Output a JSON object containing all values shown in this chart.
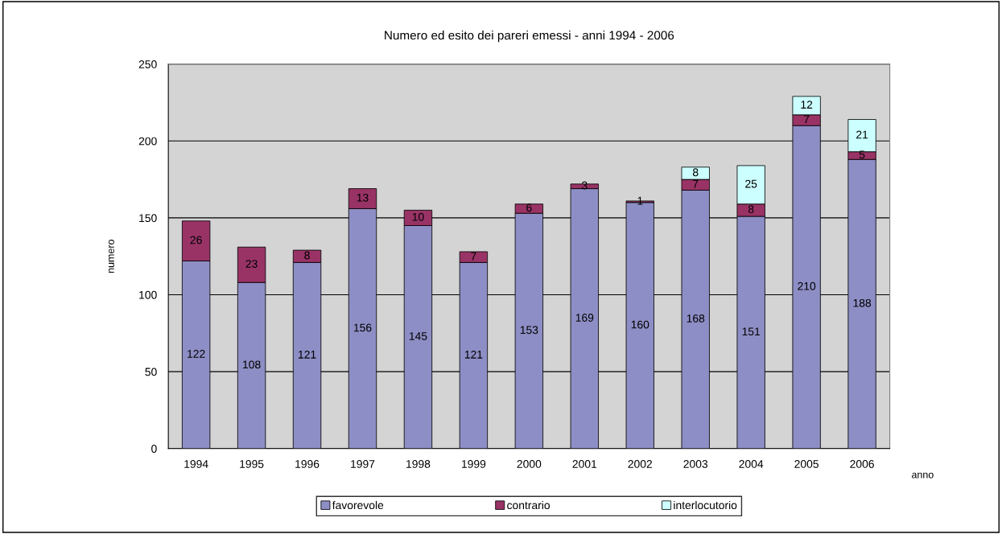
{
  "chart_data": {
    "type": "bar",
    "stacked": true,
    "title": "Numero ed esito dei pareri emessi - anni 1994 - 2006",
    "xlabel": "anno",
    "ylabel": "numero",
    "categories": [
      "1994",
      "1995",
      "1996",
      "1997",
      "1998",
      "1999",
      "2000",
      "2001",
      "2002",
      "2003",
      "2004",
      "2005",
      "2006"
    ],
    "series": [
      {
        "name": "favorevole",
        "color": "#8e8ec6",
        "values": [
          122,
          108,
          121,
          156,
          145,
          121,
          153,
          169,
          160,
          168,
          151,
          210,
          188
        ]
      },
      {
        "name": "contrario",
        "color": "#993366",
        "values": [
          26,
          23,
          8,
          13,
          10,
          7,
          6,
          3,
          1,
          7,
          8,
          7,
          5
        ]
      },
      {
        "name": "interlocutorio",
        "color": "#ccffff",
        "values": [
          null,
          null,
          null,
          null,
          null,
          null,
          null,
          null,
          null,
          8,
          25,
          12,
          21
        ]
      }
    ],
    "ylim": [
      0,
      250
    ],
    "yticks": [
      0,
      50,
      100,
      150,
      200,
      250
    ],
    "grid": "y",
    "legend": "bottom",
    "data_labels": true
  }
}
